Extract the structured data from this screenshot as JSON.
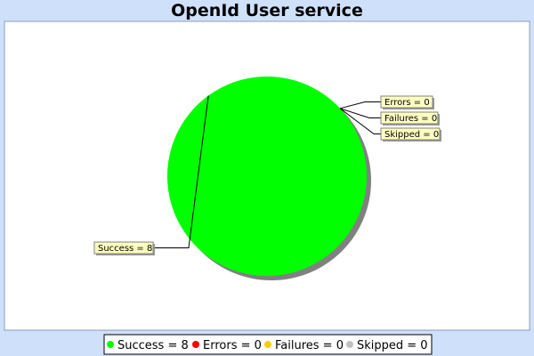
{
  "chart_data": {
    "type": "pie",
    "title": "OpenId User service",
    "categories": [
      "Success",
      "Errors",
      "Failures",
      "Skipped"
    ],
    "values": [
      8,
      0,
      0,
      0
    ],
    "colors": [
      "#00ff00",
      "#ff0000",
      "#ffcc00",
      "#c0c0c0"
    ],
    "slice_labels": [
      "Success = 8",
      "Errors = 0",
      "Failures = 0",
      "Skipped = 0"
    ],
    "legend": {
      "position": "bottom",
      "items": [
        "Success = 8",
        "Errors = 0",
        "Failures = 0",
        "Skipped = 0"
      ]
    },
    "colors_ui": {
      "page_background": "#cfe0fb",
      "plot_background": "#ffffff",
      "label_background": "#ffffc0",
      "shadow": "#808080"
    }
  }
}
